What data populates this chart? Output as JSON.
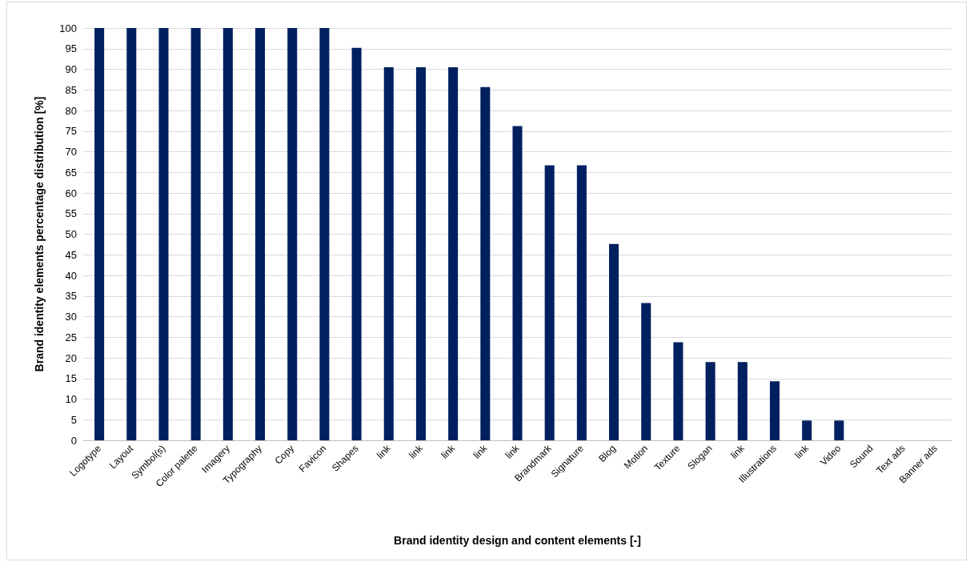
{
  "chart_data": {
    "type": "bar",
    "xlabel": "Brand identity design and content elements [-]",
    "ylabel": "Brand identity elements percentage distribution [%]",
    "categories": [
      "Logotype",
      "Layout",
      "Symbol(s)",
      "Color palette",
      "Imagery",
      "Typography",
      "Copy",
      "Favicon",
      "Shapes",
      "link",
      "link",
      "link",
      "link",
      "link",
      "Brandmark",
      "Signature",
      "Blog",
      "Motion",
      "Texture",
      "Slogan",
      "link",
      "Illustrations",
      "link",
      "Video",
      "Sound",
      "Text ads",
      "Banner ads"
    ],
    "values": [
      100,
      100,
      100,
      100,
      100,
      100,
      100,
      100,
      95.2,
      90.5,
      90.5,
      90.5,
      85.7,
      76.2,
      66.7,
      66.7,
      47.6,
      33.3,
      23.8,
      19.0,
      19.0,
      14.3,
      4.8,
      4.8,
      0,
      0,
      0
    ],
    "color": "#002060",
    "ylim": [
      0,
      100
    ],
    "yticks": [
      0,
      5,
      10,
      15,
      20,
      25,
      30,
      35,
      40,
      45,
      50,
      55,
      60,
      65,
      70,
      75,
      80,
      85,
      90,
      95,
      100
    ],
    "grid": "y"
  }
}
